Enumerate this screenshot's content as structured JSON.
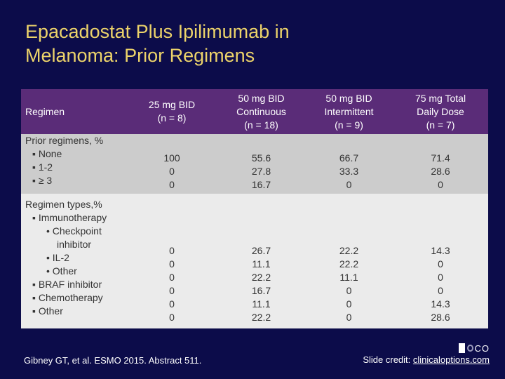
{
  "title": {
    "line1": "Epacadostat Plus Ipilimumab in",
    "line2": "Melanoma: Prior Regimens"
  },
  "table": {
    "headers": [
      "Regimen",
      "25 mg BID\n(n = 8)",
      "50 mg BID\nContinuous\n(n = 18)",
      "50 mg BID\nIntermittent\n(n = 9)",
      "75 mg Total\nDaily Dose\n(n = 7)"
    ],
    "header_lines": [
      [
        "Regimen"
      ],
      [
        "25 mg BID",
        "(n = 8)"
      ],
      [
        "50 mg BID",
        "Continuous",
        "(n = 18)"
      ],
      [
        "50 mg BID",
        "Intermittent",
        "(n = 9)"
      ],
      [
        "75 mg Total",
        "Daily Dose",
        "(n = 7)"
      ]
    ],
    "prior_regimens": {
      "label": "Prior regimens, %",
      "items": [
        "None",
        "1-2",
        "≥ 3"
      ],
      "values": [
        [
          "100",
          "0",
          "0"
        ],
        [
          "55.6",
          "27.8",
          "16.7"
        ],
        [
          "66.7",
          "33.3",
          "0"
        ],
        [
          "71.4",
          "28.6",
          "0"
        ]
      ]
    },
    "regimen_types": {
      "label": "Regimen types,%",
      "immunotherapy": "Immunotherapy",
      "checkpoint_line1": "Checkpoint",
      "checkpoint_line2": "inhibitor",
      "il2": "IL-2",
      "other_sub": "Other",
      "braf": "BRAF inhibitor",
      "chemo": "Chemotherapy",
      "other": "Other",
      "values": [
        [
          "0",
          "0",
          "0",
          "0",
          "0",
          "0"
        ],
        [
          "26.7",
          "11.1",
          "22.2",
          "16.7",
          "11.1",
          "22.2"
        ],
        [
          "22.2",
          "22.2",
          "11.1",
          "0",
          "0",
          "0"
        ],
        [
          "14.3",
          "0",
          "0",
          "0",
          "14.3",
          "28.6"
        ]
      ]
    }
  },
  "footer": {
    "reference": "Gibney GT, et al. ESMO 2015. Abstract 511.",
    "credit_label": "Slide credit: ",
    "credit_link": "clinicaloptions.com",
    "logo_text": "CO"
  },
  "colors": {
    "background": "#0c0c4a",
    "title": "#ecd36a",
    "header_bg": "#5a2c78",
    "row1_bg": "#cccccc",
    "row2_bg": "#ebebeb"
  }
}
